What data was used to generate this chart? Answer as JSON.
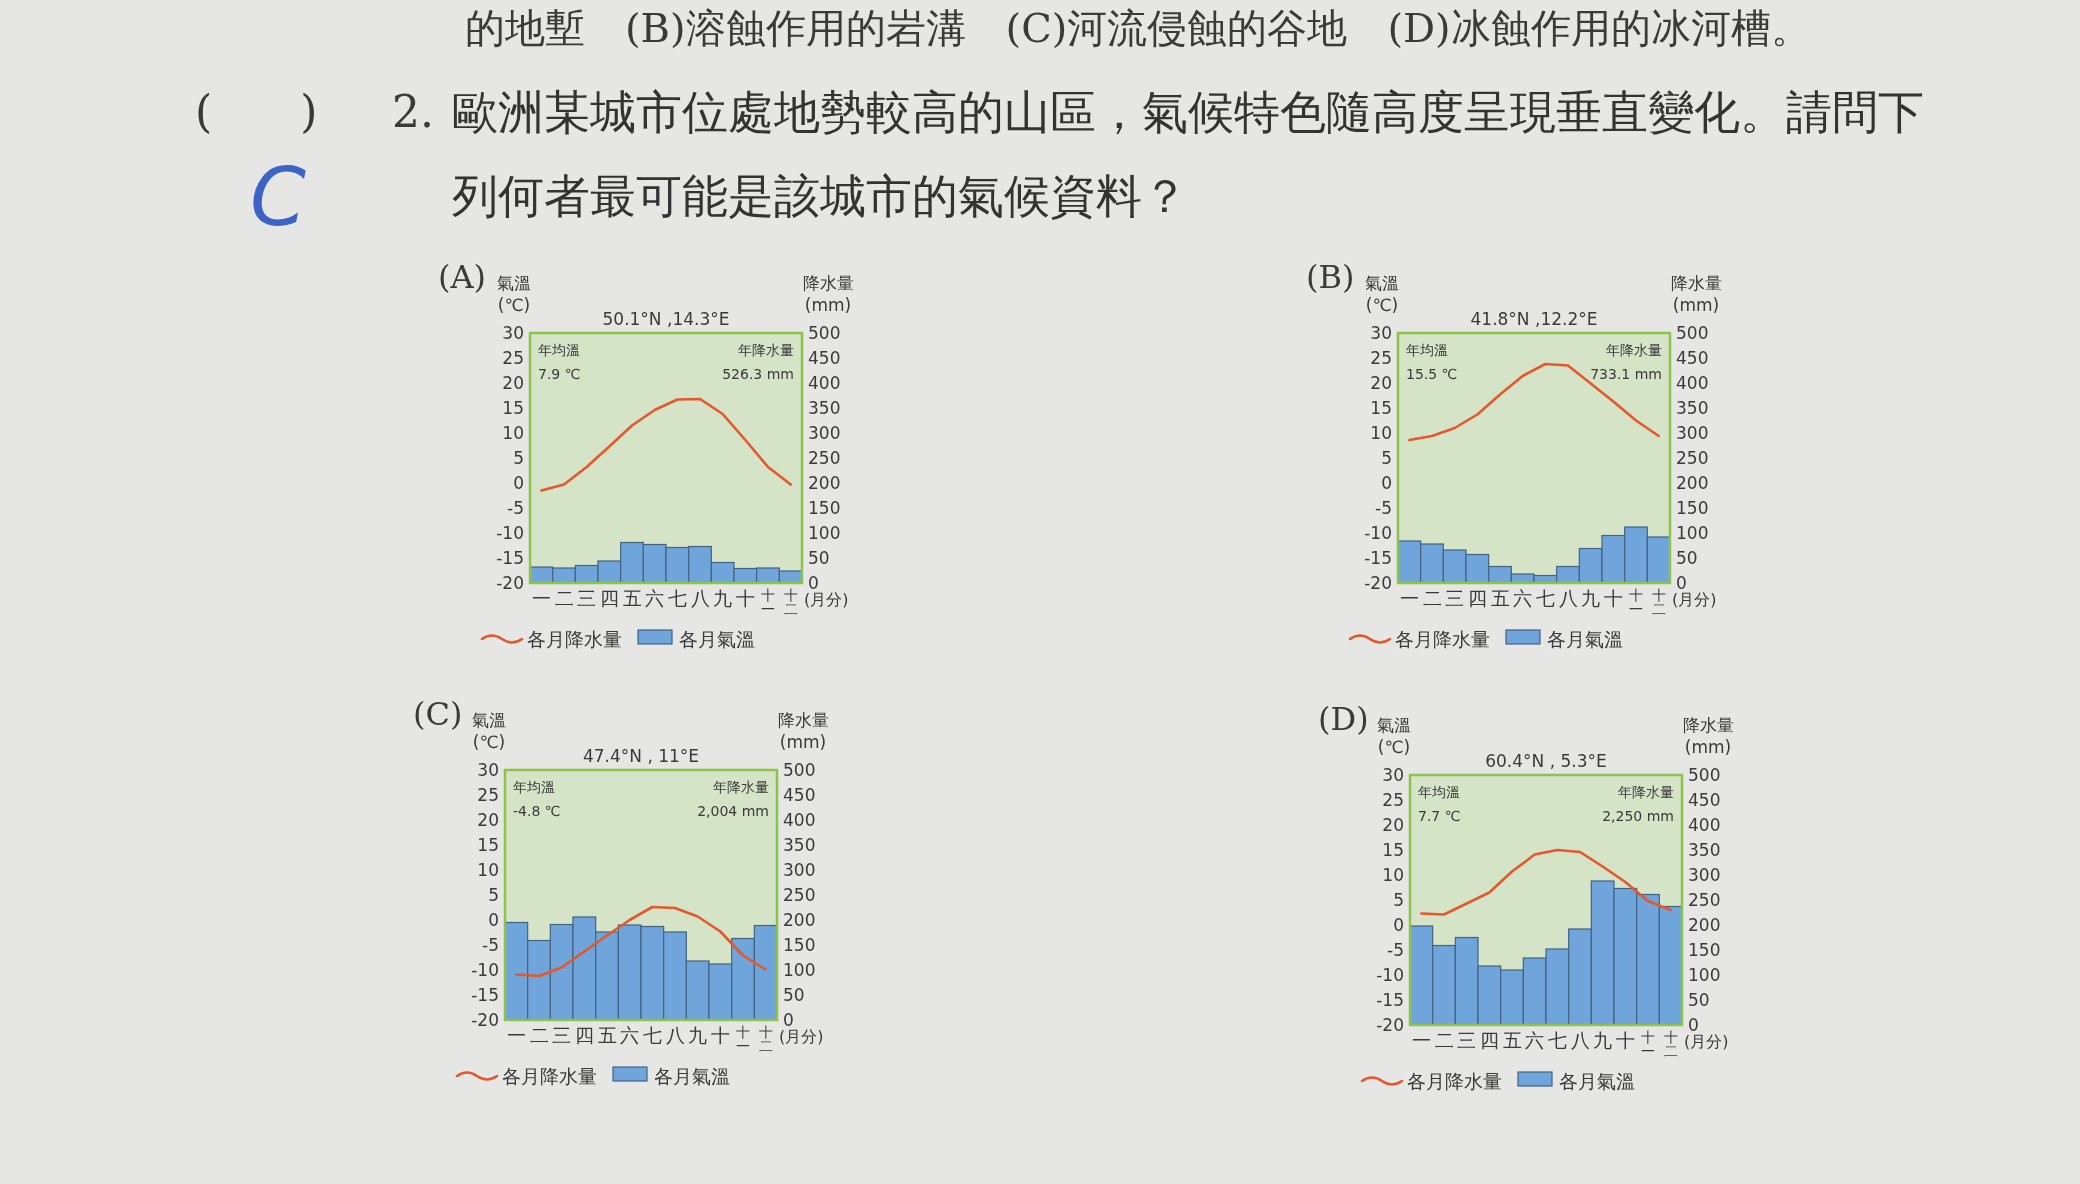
{
  "chart_data": [
    {
      "type": "other",
      "title": "歐洲某城市位處地勢較高的山區，氣候特色隨高度呈現垂直變化。請問下列何者最可能是該城市的氣候資料？",
      "annotations": [
        "的地塹　(B)溶蝕作用的岩溝　(C)河流侵蝕的谷地　(D)冰蝕作用的冰河槽。",
        "(　　)",
        "2.",
        "C"
      ]
    },
    {
      "type": "bar",
      "subtitle": "(A)",
      "title": "50.1°N ,14.3°E",
      "ylabel": "氣溫\n(℃)",
      "y2label": "降水量\n(mm)",
      "xlabel": "(月分)",
      "annotations": [
        "年均溫\n7.9 ℃",
        "年降水量\n526.3 mm"
      ],
      "categories": [
        "一",
        "二",
        "三",
        "四",
        "五",
        "六",
        "七",
        "八",
        "九",
        "十",
        "十一",
        "十二"
      ],
      "series": [
        {
          "name": "各月降水量",
          "type": "line",
          "color": "#e4582e",
          "values": [
            -1.5,
            -0.3,
            3.2,
            7.3,
            11.5,
            14.6,
            16.7,
            16.8,
            13.8,
            8.6,
            3.2,
            -0.3
          ]
        },
        {
          "name": "各月氣溫",
          "type": "bar",
          "axis": "y2",
          "color": "#6fa5da",
          "values": [
            32,
            30,
            35,
            44,
            81,
            77,
            71,
            73,
            41,
            29,
            30,
            24
          ]
        }
      ],
      "ylim": [
        -20,
        30
      ],
      "yticks": [
        -20,
        -15,
        -10,
        -5,
        0,
        5,
        10,
        15,
        20,
        25,
        30
      ],
      "y2lim": [
        0,
        500
      ],
      "y2ticks": [
        0,
        50,
        100,
        150,
        200,
        250,
        300,
        350,
        400,
        450,
        500
      ],
      "legend": "bottom"
    },
    {
      "type": "bar",
      "subtitle": "(B)",
      "title": "41.8°N ,12.2°E",
      "ylabel": "氣溫\n(℃)",
      "y2label": "降水量\n(mm)",
      "xlabel": "(月分)",
      "annotations": [
        "年均溫\n15.5 ℃",
        "年降水量\n733.1 mm"
      ],
      "categories": [
        "一",
        "二",
        "三",
        "四",
        "五",
        "六",
        "七",
        "八",
        "九",
        "十",
        "十一",
        "十二"
      ],
      "series": [
        {
          "name": "各月降水量",
          "type": "line",
          "color": "#e4582e",
          "values": [
            8.6,
            9.4,
            11.0,
            13.7,
            17.7,
            21.4,
            23.8,
            23.5,
            19.9,
            16.3,
            12.5,
            9.4
          ]
        },
        {
          "name": "各月氣溫",
          "type": "bar",
          "axis": "y2",
          "color": "#6fa5da",
          "values": [
            84,
            78,
            66,
            57,
            33,
            18,
            15,
            33,
            69,
            95,
            112,
            92
          ]
        }
      ],
      "ylim": [
        -20,
        30
      ],
      "yticks": [
        -20,
        -15,
        -10,
        -5,
        0,
        5,
        10,
        15,
        20,
        25,
        30
      ],
      "y2lim": [
        0,
        500
      ],
      "y2ticks": [
        0,
        50,
        100,
        150,
        200,
        250,
        300,
        350,
        400,
        450,
        500
      ],
      "legend": "bottom"
    },
    {
      "type": "bar",
      "subtitle": "(C)",
      "title": "47.4°N , 11°E",
      "ylabel": "氣溫\n(℃)",
      "y2label": "降水量\n(mm)",
      "xlabel": "(月分)",
      "annotations": [
        "年均溫\n-4.8 ℃",
        "年降水量\n2,004 mm"
      ],
      "categories": [
        "一",
        "二",
        "三",
        "四",
        "五",
        "六",
        "七",
        "八",
        "九",
        "十",
        "十一",
        "十二"
      ],
      "series": [
        {
          "name": "各月降水量",
          "type": "line",
          "color": "#e4582e",
          "values": [
            -10.9,
            -11.2,
            -9.5,
            -6.3,
            -3.1,
            0.0,
            2.6,
            2.4,
            0.7,
            -2.3,
            -7.1,
            -9.9
          ]
        },
        {
          "name": "各月氣溫",
          "type": "bar",
          "axis": "y2",
          "color": "#6fa5da",
          "values": [
            195,
            159,
            191,
            206,
            176,
            190,
            187,
            176,
            118,
            112,
            163,
            189
          ]
        }
      ],
      "ylim": [
        -20,
        30
      ],
      "yticks": [
        -20,
        -15,
        -10,
        -5,
        0,
        5,
        10,
        15,
        20,
        25,
        30
      ],
      "y2lim": [
        0,
        500
      ],
      "y2ticks": [
        0,
        50,
        100,
        150,
        200,
        250,
        300,
        350,
        400,
        450,
        500
      ],
      "legend": "bottom"
    },
    {
      "type": "bar",
      "subtitle": "(D)",
      "title": "60.4°N , 5.3°E",
      "ylabel": "氣溫\n(℃)",
      "y2label": "降水量\n(mm)",
      "xlabel": "(月分)",
      "annotations": [
        "年均溫\n7.7 ℃",
        "年降水量\n2,250 mm"
      ],
      "categories": [
        "一",
        "二",
        "三",
        "四",
        "五",
        "六",
        "七",
        "八",
        "九",
        "十",
        "十一",
        "十二"
      ],
      "series": [
        {
          "name": "各月降水量",
          "type": "line",
          "color": "#e4582e",
          "values": [
            2.3,
            2.1,
            4.3,
            6.5,
            10.7,
            14.1,
            15.0,
            14.6,
            11.7,
            8.6,
            4.8,
            3.0
          ]
        },
        {
          "name": "各月氣溫",
          "type": "bar",
          "axis": "y2",
          "color": "#6fa5da",
          "values": [
            198,
            159,
            175,
            118,
            110,
            134,
            152,
            192,
            288,
            273,
            261,
            237
          ]
        }
      ],
      "ylim": [
        -20,
        30
      ],
      "yticks": [
        -20,
        -15,
        -10,
        -5,
        0,
        5,
        10,
        15,
        20,
        25,
        30
      ],
      "y2lim": [
        0,
        500
      ],
      "y2ticks": [
        0,
        50,
        100,
        150,
        200,
        250,
        300,
        350,
        400,
        450,
        500
      ],
      "legend": "bottom"
    }
  ]
}
